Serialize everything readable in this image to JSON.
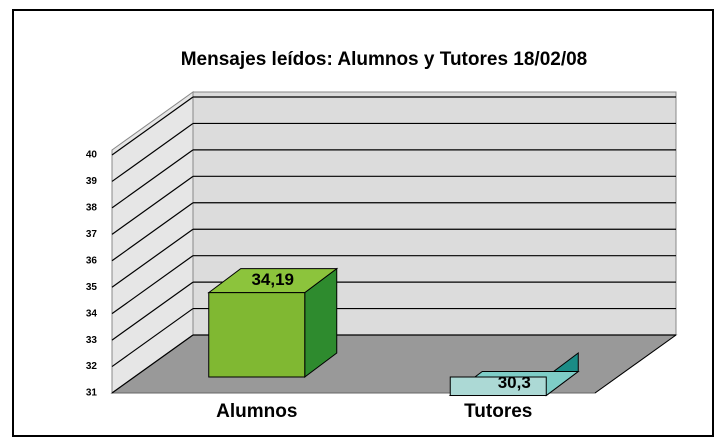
{
  "chart_data": {
    "type": "bar3d",
    "title": "Mensajes leídos: Alumnos y Tutores 18/02/08",
    "categories": [
      "Alumnos",
      "Tutores"
    ],
    "values": [
      34.19,
      30.3
    ],
    "value_labels": [
      "34,19",
      "30,3"
    ],
    "colors": [
      {
        "front": "#80b832",
        "top": "#8cc43c",
        "side": "#2e8b2e"
      },
      {
        "front": "#acd9d5",
        "top": "#7ecdc7",
        "side": "#1b8c86"
      }
    ],
    "ylim": [
      31,
      40
    ],
    "yticks": [
      31,
      32,
      33,
      34,
      35,
      36,
      37,
      38,
      39,
      40
    ],
    "grid": true
  }
}
